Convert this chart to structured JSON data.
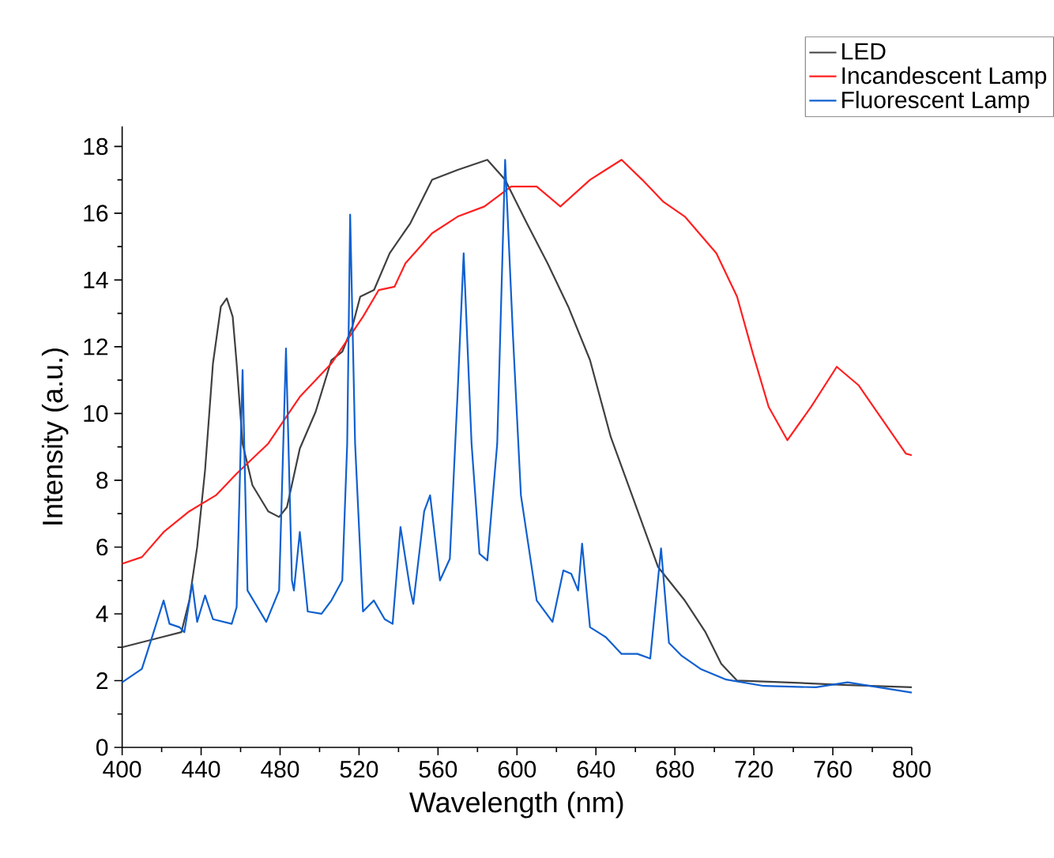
{
  "chart_data": {
    "type": "line",
    "xlabel": "Wavelength (nm)",
    "ylabel": "Intensity (a.u.)",
    "xlim": [
      400,
      800
    ],
    "ylim": [
      0,
      18.6
    ],
    "xticks": [
      400,
      440,
      480,
      520,
      560,
      600,
      640,
      680,
      720,
      760,
      800
    ],
    "yticks": [
      0,
      2,
      4,
      6,
      8,
      10,
      12,
      14,
      16,
      18
    ],
    "legend": "top right",
    "grid": false,
    "series": [
      {
        "name": "LED",
        "color": "#404040",
        "x": [
          400,
          420,
          430,
          434,
          438,
          442,
          446,
          450,
          453,
          456,
          458,
          461,
          466,
          474,
          479.5,
          483.5,
          490,
          498,
          506,
          511.5,
          516.6,
          520.6,
          527.6,
          535.5,
          546,
          557,
          570,
          585,
          594,
          605,
          615.5,
          626,
          637,
          647.5,
          658,
          671.5,
          685,
          695.5,
          703.5,
          711.5,
          735.5,
          765,
          800
        ],
        "values": [
          3.0,
          3.3,
          3.45,
          4.4,
          6.0,
          8.3,
          11.5,
          13.2,
          13.45,
          12.9,
          11.5,
          9.1,
          7.85,
          7.07,
          6.9,
          7.2,
          8.95,
          10.05,
          11.6,
          11.85,
          12.6,
          13.5,
          13.7,
          14.8,
          15.7,
          17.0,
          17.3,
          17.6,
          17.0,
          15.7,
          14.5,
          13.2,
          11.6,
          9.3,
          7.6,
          5.4,
          4.4,
          3.45,
          2.5,
          2.0,
          1.95,
          1.87,
          1.8
        ]
      },
      {
        "name": "Incandescent Lamp",
        "color": "#ff2020",
        "x": [
          400,
          410,
          421,
          434,
          447.5,
          458,
          474,
          482,
          490,
          506,
          522,
          530,
          538,
          543.5,
          557,
          570,
          583.5,
          597,
          610,
          622,
          637,
          653,
          663.5,
          674,
          685,
          701,
          711.5,
          719.5,
          727.5,
          737,
          749,
          762,
          773,
          786,
          797,
          800
        ],
        "values": [
          5.5,
          5.7,
          6.45,
          7.07,
          7.55,
          8.2,
          9.1,
          9.8,
          10.5,
          11.5,
          12.9,
          13.7,
          13.8,
          14.5,
          15.4,
          15.9,
          16.2,
          16.8,
          16.8,
          16.2,
          17.0,
          17.6,
          17.0,
          16.35,
          15.9,
          14.8,
          13.5,
          11.8,
          10.2,
          9.2,
          10.2,
          11.4,
          10.85,
          9.74,
          8.8,
          8.75
        ]
      },
      {
        "name": "Fluorescent Lamp",
        "color": "#1060d0",
        "x": [
          400,
          410,
          415.5,
          421,
          424,
          429,
          431.5,
          435.5,
          438,
          442,
          446,
          455.5,
          458,
          461,
          463.5,
          473,
          479.5,
          483,
          486,
          487,
          490,
          494,
          501,
          506,
          511.5,
          514,
          515.5,
          518,
          522,
          527.5,
          533,
          537,
          541,
          546,
          547.5,
          553,
          556,
          561,
          566,
          570,
          573,
          577,
          581,
          585,
          590,
          594,
          598,
          602,
          610,
          618,
          623.5,
          627.5,
          631,
          633,
          637,
          645,
          653,
          661,
          667.5,
          673,
          677,
          683.5,
          693,
          706,
          725,
          751.5,
          767.5,
          800
        ],
        "values": [
          1.95,
          2.35,
          3.37,
          4.4,
          3.7,
          3.6,
          3.45,
          4.9,
          3.76,
          4.55,
          3.84,
          3.7,
          4.2,
          11.3,
          4.7,
          3.76,
          4.7,
          11.95,
          5.0,
          4.7,
          6.45,
          4.07,
          4.0,
          4.4,
          5.0,
          9.1,
          15.96,
          9.1,
          4.07,
          4.4,
          3.84,
          3.7,
          6.6,
          4.7,
          4.3,
          7.07,
          7.55,
          5.0,
          5.65,
          10.7,
          14.8,
          9.1,
          5.8,
          5.6,
          9.1,
          17.6,
          12.3,
          7.55,
          4.4,
          3.76,
          5.3,
          5.2,
          4.7,
          6.1,
          3.6,
          3.3,
          2.8,
          2.8,
          2.66,
          5.96,
          3.13,
          2.74,
          2.35,
          2.03,
          1.84,
          1.8,
          1.95,
          1.64
        ]
      }
    ]
  }
}
